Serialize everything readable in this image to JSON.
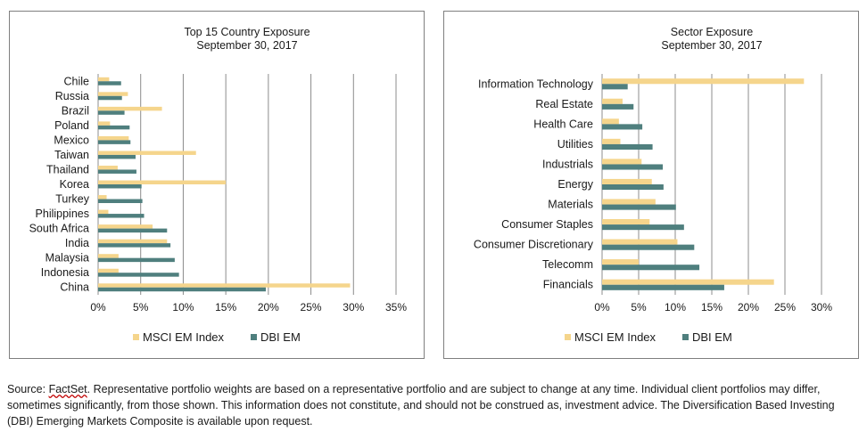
{
  "colors": {
    "msci": "#f5d58c",
    "dbi": "#4f7f7e",
    "grid": "#8c8c8c"
  },
  "chart_data": [
    {
      "type": "bar",
      "orientation": "horizontal",
      "title": "Top 15 Country Exposure",
      "subtitle": "September 30, 2017",
      "categories": [
        "Chile",
        "Russia",
        "Brazil",
        "Poland",
        "Mexico",
        "Taiwan",
        "Thailand",
        "Korea",
        "Turkey",
        "Philippines",
        "South Africa",
        "India",
        "Malaysia",
        "Indonesia",
        "China"
      ],
      "series": [
        {
          "name": "MSCI EM Index",
          "values": [
            1.3,
            3.5,
            7.5,
            1.4,
            3.6,
            11.5,
            2.3,
            15.0,
            1.0,
            1.2,
            6.4,
            8.1,
            2.4,
            2.4,
            29.6
          ]
        },
        {
          "name": "DBI EM",
          "values": [
            2.7,
            2.8,
            3.1,
            3.7,
            3.8,
            4.4,
            4.5,
            5.1,
            5.2,
            5.4,
            8.1,
            8.5,
            9.0,
            9.5,
            19.7
          ]
        }
      ],
      "xlim": [
        0,
        35
      ],
      "ticks": [
        "0%",
        "5%",
        "10%",
        "15%",
        "20%",
        "25%",
        "30%",
        "35%"
      ],
      "tick_values": [
        0,
        5,
        10,
        15,
        20,
        25,
        30,
        35
      ],
      "grid": true,
      "legend": "bottom"
    },
    {
      "type": "bar",
      "orientation": "horizontal",
      "title": "Sector Exposure",
      "subtitle": "September 30, 2017",
      "categories": [
        "Information Technology",
        "Real Estate",
        "Health Care",
        "Utilities",
        "Industrials",
        "Energy",
        "Materials",
        "Consumer Staples",
        "Consumer Discretionary",
        "Telecomm",
        "Financials"
      ],
      "series": [
        {
          "name": "MSCI EM Index",
          "values": [
            27.6,
            2.8,
            2.3,
            2.5,
            5.4,
            6.8,
            7.3,
            6.5,
            10.3,
            5.0,
            23.5
          ]
        },
        {
          "name": "DBI EM",
          "values": [
            3.5,
            4.3,
            5.5,
            6.9,
            8.3,
            8.4,
            10.1,
            11.2,
            12.6,
            13.3,
            16.7
          ]
        }
      ],
      "xlim": [
        0,
        30
      ],
      "ticks": [
        "0%",
        "5%",
        "10%",
        "15%",
        "20%",
        "25%",
        "30%"
      ],
      "tick_values": [
        0,
        5,
        10,
        15,
        20,
        25,
        30
      ],
      "grid": true,
      "legend": "bottom"
    }
  ],
  "footnote": {
    "prefix": "Source: ",
    "source_name": "FactSet",
    "text": ". Representative portfolio weights are based on a representative portfolio and are subject to change at any time. Individual client portfolios may differ, sometimes significantly, from those shown. This information does not constitute, and should not be construed as, investment advice. The Diversification Based Investing (DBI) Emerging Markets Composite is available upon request."
  }
}
